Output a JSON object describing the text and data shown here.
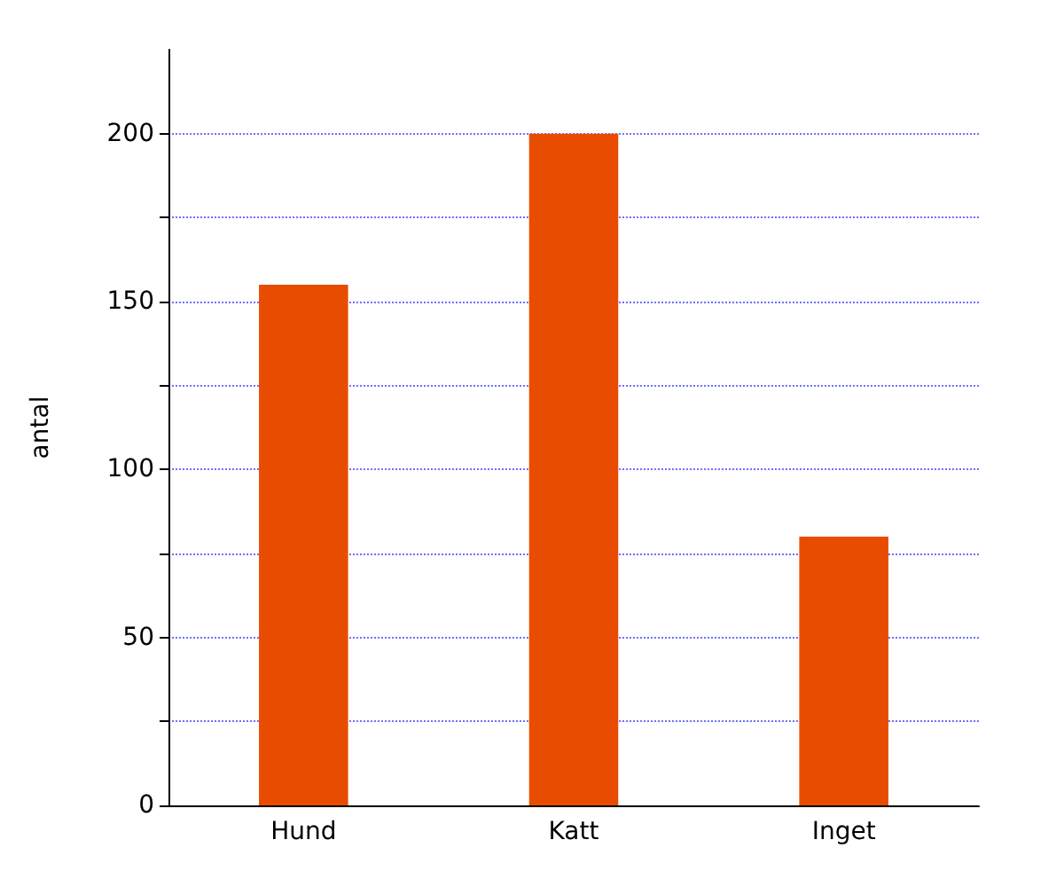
{
  "chart_data": {
    "type": "bar",
    "ylabel": "antal",
    "categories": [
      "Hund",
      "Katt",
      "Inget"
    ],
    "values": [
      155,
      200,
      80
    ],
    "color": "#e84c00",
    "ylim": [
      0,
      225
    ],
    "yticks": [
      0,
      {
        "value": 25,
        "label": null
      },
      50,
      {
        "value": 75,
        "label": null
      },
      100,
      {
        "value": 125,
        "label": null
      },
      150,
      {
        "value": 175,
        "label": null
      },
      200
    ],
    "grid": "y"
  }
}
